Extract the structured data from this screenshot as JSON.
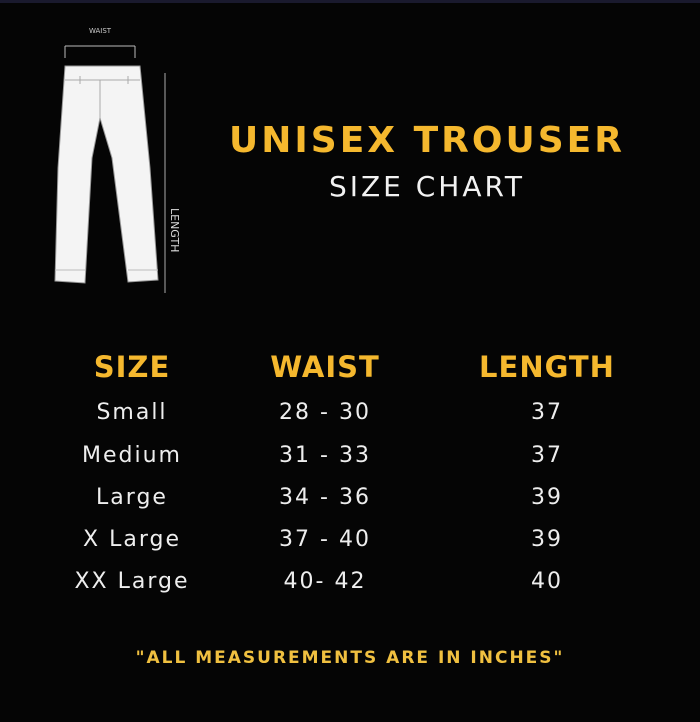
{
  "title": "UNISEX TROUSER",
  "subtitle": "SIZE CHART",
  "illustration": {
    "waist_label": "WAIST",
    "length_label": "LENGTH"
  },
  "table": {
    "headers": [
      "SIZE",
      "WAIST",
      "LENGTH"
    ],
    "rows": [
      [
        "Small",
        "28 - 30",
        "37"
      ],
      [
        "Medium",
        "31 - 33",
        "37"
      ],
      [
        "Large",
        "34 - 36",
        "39"
      ],
      [
        "X Large",
        "37 - 40",
        "39"
      ],
      [
        "XX Large",
        "40- 42",
        "40"
      ]
    ]
  },
  "note": "\"ALL MEASUREMENTS ARE IN INCHES\"",
  "colors": {
    "background": "#050505",
    "accent": "#f5b82e",
    "text": "#eeeeee"
  }
}
